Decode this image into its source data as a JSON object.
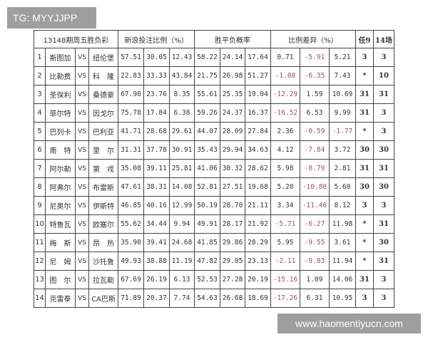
{
  "overlay_label": "TG: MYYJJPP",
  "watermark": "www.haomentiyucn.com",
  "table": {
    "headers": {
      "issue": "13148期周五胜负彩",
      "sina": "新浪投注比例（%）",
      "odds": "胜平负概率",
      "diff": "比例差异（%）",
      "ren9": "任9",
      "c14": "14场"
    },
    "rows": [
      {
        "no": "1",
        "home": "斯图加",
        "vs": "VS",
        "away": "纽伦堡",
        "sina": [
          "57.51",
          "30.05",
          "12.43"
        ],
        "odds": [
          "58.22",
          "24.14",
          "17.64"
        ],
        "diff": [
          "0.71",
          "-5.91",
          "5.21"
        ],
        "ren9": "3",
        "c14": "3"
      },
      {
        "no": "2",
        "home": "比勒费",
        "vs": "VS",
        "away": "科　隆",
        "sina": [
          "22.83",
          "33.33",
          "43.84"
        ],
        "odds": [
          "21.75",
          "26.98",
          "51.27"
        ],
        "diff": [
          "-1.08",
          "-6.35",
          "7.43"
        ],
        "ren9": "*",
        "c14": "10"
      },
      {
        "no": "3",
        "home": "圣保利",
        "vs": "VS",
        "away": "桑德豪",
        "sina": [
          "67.90",
          "23.76",
          "8.35"
        ],
        "odds": [
          "55.61",
          "25.35",
          "19.04"
        ],
        "diff": [
          "-12.29",
          "1.59",
          "10.69"
        ],
        "ren9": "31",
        "c14": "31"
      },
      {
        "no": "4",
        "home": "菲尔特",
        "vs": "VS",
        "away": "因戈尔",
        "sina": [
          "75.78",
          "17.84",
          "6.38"
        ],
        "odds": [
          "59.26",
          "24.37",
          "16.37"
        ],
        "diff": [
          "-16.52",
          "6.53",
          "9.99"
        ],
        "ren9": "31",
        "c14": "3"
      },
      {
        "no": "5",
        "home": "巴列卡",
        "vs": "VS",
        "away": "巴利亚",
        "sina": [
          "41.71",
          "28.68",
          "29.61"
        ],
        "odds": [
          "44.07",
          "28.09",
          "27.84"
        ],
        "diff": [
          "2.36",
          "-0.59",
          "-1.77"
        ],
        "ren9": "*",
        "c14": "3"
      },
      {
        "no": "6",
        "home": "南　特",
        "vs": "VS",
        "away": "里　尔",
        "sina": [
          "31.31",
          "37.78",
          "30.91"
        ],
        "odds": [
          "35.43",
          "29.94",
          "34.63"
        ],
        "diff": [
          "4.12",
          "-7.84",
          "3.72"
        ],
        "ren9": "30",
        "c14": "30"
      },
      {
        "no": "7",
        "home": "阿尔勒",
        "vs": "VS",
        "away": "第　戎",
        "sina": [
          "35.08",
          "39.11",
          "25.81"
        ],
        "odds": [
          "41.06",
          "30.32",
          "28.62"
        ],
        "diff": [
          "5.98",
          "-8.79",
          "2.81"
        ],
        "ren9": "31",
        "c14": "31"
      },
      {
        "no": "8",
        "home": "阿弗尔",
        "vs": "VS",
        "away": "布雷斯",
        "sina": [
          "47.61",
          "38.31",
          "14.08"
        ],
        "odds": [
          "52.81",
          "27.51",
          "19.68"
        ],
        "diff": [
          "5.20",
          "-10.80",
          "5.60"
        ],
        "ren9": "30",
        "c14": "30"
      },
      {
        "no": "9",
        "home": "尼奥尔",
        "vs": "VS",
        "away": "伊斯特",
        "sina": [
          "46.85",
          "40.16",
          "12.99"
        ],
        "odds": [
          "50.19",
          "28.70",
          "21.11"
        ],
        "diff": [
          "3.34",
          "-11.46",
          "8.12"
        ],
        "ren9": "3",
        "c14": "3"
      },
      {
        "no": "10",
        "home": "特鲁瓦",
        "vs": "VS",
        "away": "欧塞尔",
        "sina": [
          "55.62",
          "34.44",
          "9.94"
        ],
        "odds": [
          "49.91",
          "28.17",
          "21.92"
        ],
        "diff": [
          "-5.71",
          "-6.27",
          "11.98"
        ],
        "ren9": "*",
        "c14": "31"
      },
      {
        "no": "11",
        "home": "梅　斯",
        "vs": "VS",
        "away": "昂　热",
        "sina": [
          "35.90",
          "39.41",
          "24.68"
        ],
        "odds": [
          "41.85",
          "29.86",
          "28.29"
        ],
        "diff": [
          "5.95",
          "-9.55",
          "3.61"
        ],
        "ren9": "*",
        "c14": "30"
      },
      {
        "no": "12",
        "home": "尼　姆",
        "vs": "VS",
        "away": "沙托鲁",
        "sina": [
          "49.93",
          "38.88",
          "11.19"
        ],
        "odds": [
          "47.82",
          "29.05",
          "23.13"
        ],
        "diff": [
          "-2.11",
          "-9.83",
          "11.94"
        ],
        "ren9": "*",
        "c14": "31"
      },
      {
        "no": "13",
        "home": "图　尔",
        "vs": "VS",
        "away": "拉瓦勒",
        "sina": [
          "67.69",
          "26.19",
          "6.13"
        ],
        "odds": [
          "52.53",
          "27.28",
          "20.19"
        ],
        "diff": [
          "-15.16",
          "1.09",
          "14.06"
        ],
        "ren9": "31",
        "c14": "3"
      },
      {
        "no": "14",
        "home": "克雷泰",
        "vs": "VS",
        "away": "CA巴斯",
        "sina": [
          "71.89",
          "20.37",
          "7.74"
        ],
        "odds": [
          "54.63",
          "26.68",
          "18.69"
        ],
        "diff": [
          "-17.26",
          "6.31",
          "10.95"
        ],
        "ren9": "3",
        "c14": "3"
      }
    ]
  },
  "colors": {
    "negative": "#a0506a",
    "border": "#444444",
    "overlay_bg": "#9e9e9e"
  }
}
